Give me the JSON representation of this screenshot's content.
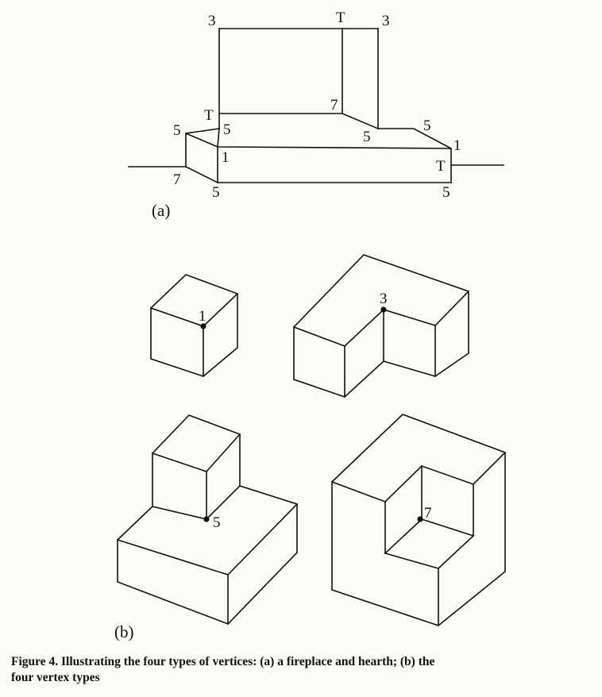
{
  "figure_a": {
    "panel_label": "(a)",
    "vertex_labels": {
      "top_left_3": "3",
      "top_t": "T",
      "top_right_3": "3",
      "chimney_t": "T",
      "chimney_5": "5",
      "inner_7": "7",
      "inner_5": "5",
      "hearth_left_5": "5",
      "hearth_right_5": "5",
      "hearth_right_1": "1",
      "front_1": "1",
      "left_7": "7",
      "bottom_left_5": "5",
      "right_t": "T",
      "bottom_right_5": "5"
    }
  },
  "figure_b": {
    "panel_label": "(b)",
    "vertex_labels": {
      "cube_1": "1",
      "l_block_3": "3",
      "stacked_5": "5",
      "corner_7": "7"
    }
  },
  "caption": {
    "line1": "Figure 4. Illustrating the four types of vertices: (a) a fireplace and hearth; (b) the",
    "line2": "four vertex types"
  }
}
